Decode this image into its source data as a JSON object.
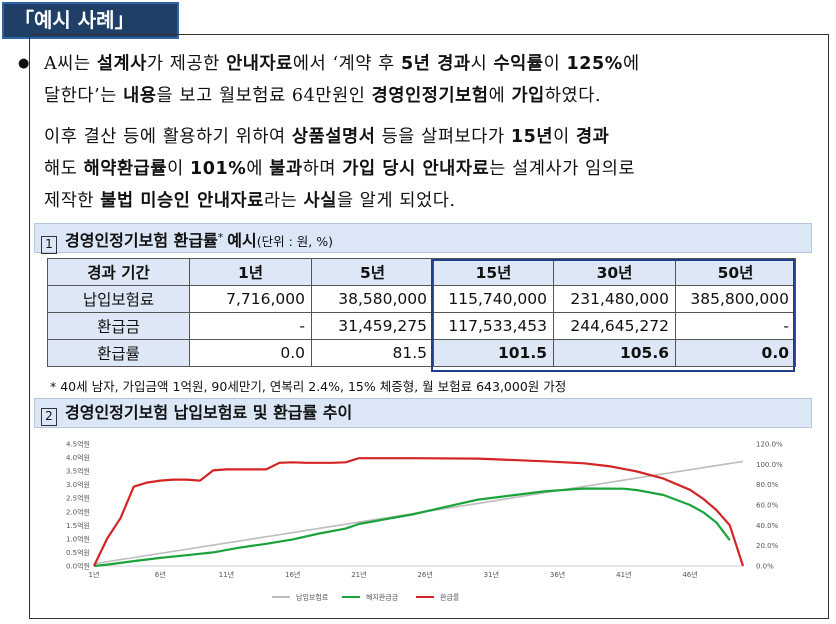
{
  "case_tag": "「예시 사례」",
  "paragraphs": [
    [
      {
        "t": "A씨는 ",
        "b": false
      },
      {
        "t": "설계사",
        "b": true
      },
      {
        "t": "가 제공한 ",
        "b": false
      },
      {
        "t": "안내자료",
        "b": true
      },
      {
        "t": "에서 ‘계약 후 ",
        "b": false
      },
      {
        "t": "5년 경과",
        "b": true
      },
      {
        "t": "시 ",
        "b": false
      },
      {
        "t": "수익률",
        "b": true
      },
      {
        "t": "이 ",
        "b": false
      },
      {
        "t": "125%",
        "b": true
      },
      {
        "t": "에",
        "b": false
      }
    ],
    [
      {
        "t": "달한다’는 ",
        "b": false
      },
      {
        "t": "내용",
        "b": true
      },
      {
        "t": "을 보고 월보험료 64만원인 ",
        "b": false
      },
      {
        "t": "경영인정기보험",
        "b": true
      },
      {
        "t": "에 ",
        "b": false
      },
      {
        "t": "가입",
        "b": true
      },
      {
        "t": "하였다.",
        "b": false
      }
    ],
    [
      {
        "t": "이후 결산 등에 활용하기 위하여 ",
        "b": false
      },
      {
        "t": "상품설명서",
        "b": true
      },
      {
        "t": " 등을 살펴보다가 ",
        "b": false
      },
      {
        "t": "15년",
        "b": true
      },
      {
        "t": "이 ",
        "b": false
      },
      {
        "t": "경과",
        "b": true
      }
    ],
    [
      {
        "t": "해도 ",
        "b": false
      },
      {
        "t": "해약환급률",
        "b": true
      },
      {
        "t": "이 ",
        "b": false
      },
      {
        "t": "101%",
        "b": true
      },
      {
        "t": "에 ",
        "b": false
      },
      {
        "t": "불과",
        "b": true
      },
      {
        "t": "하며 ",
        "b": false
      },
      {
        "t": "가입 당시 안내자료",
        "b": true
      },
      {
        "t": "는 설계사가 임의로",
        "b": false
      }
    ],
    [
      {
        "t": "제작한 ",
        "b": false
      },
      {
        "t": "불법 미승인 안내자료",
        "b": true
      },
      {
        "t": "라는 ",
        "b": false
      },
      {
        "t": "사실",
        "b": true
      },
      {
        "t": "을 알게 되었다.",
        "b": false
      }
    ]
  ],
  "section1": {
    "num": "1",
    "title": "경영인정기보험 환급률",
    "star": "*",
    "title2": "예시",
    "unit": "(단위 : 원, %)"
  },
  "table": {
    "headers": [
      "경과 기간",
      "1년",
      "5년",
      "15년",
      "30년",
      "50년"
    ],
    "rows": [
      {
        "label": "납입보험료",
        "values": [
          "7,716,000",
          "38,580,000",
          "115,740,000",
          "231,480,000",
          "385,800,000"
        ]
      },
      {
        "label": "환급금",
        "values": [
          "-",
          "31,459,275",
          "117,533,453",
          "244,645,272",
          "-"
        ]
      },
      {
        "label": "환급률",
        "values": [
          "0.0",
          "81.5",
          "101.5",
          "105.6",
          "0.0"
        ]
      }
    ]
  },
  "footnote": "* 40세 남자, 가입금액 1억원, 90세만기, 연복리 2.4%, 15% 체증형, 월 보험료 643,000원 가정",
  "section2": {
    "num": "2",
    "title": "경영인정기보험 납입보험료 및 환급률 추이"
  },
  "chart_data": {
    "type": "line",
    "x_ticks": [
      "1년",
      "6년",
      "11년",
      "16년",
      "21년",
      "26년",
      "31년",
      "36년",
      "41년",
      "46년"
    ],
    "y_left_ticks": [
      "0.0억원",
      "0.5억원",
      "1.0억원",
      "1.5억원",
      "2.0억원",
      "2.5억원",
      "3.0억원",
      "3.5억원",
      "4.0억원",
      "4.5억원"
    ],
    "y_left_range": [
      0,
      4.5
    ],
    "y_right_ticks": [
      "0.0%",
      "20.0%",
      "40.0%",
      "60.0%",
      "80.0%",
      "100.0%",
      "120.0%"
    ],
    "y_right_range": [
      0,
      120
    ],
    "x_range": [
      1,
      50
    ],
    "legend": [
      "납입보험료",
      "해지환급금",
      "환급률"
    ],
    "colors": {
      "premium": "#bdbdbd",
      "refund": "#1aa33a",
      "rate": "#d42424"
    },
    "series": [
      {
        "name": "납입보험료",
        "axis": "left",
        "x": [
          1,
          10,
          20,
          30,
          40,
          50
        ],
        "y": [
          0.08,
          0.77,
          1.54,
          2.31,
          3.09,
          3.86
        ]
      },
      {
        "name": "해지환급금",
        "axis": "left",
        "x": [
          1,
          2,
          4,
          6,
          8,
          10,
          12,
          14,
          16,
          18,
          20,
          21,
          25,
          30,
          35,
          38,
          41,
          42,
          44,
          46,
          47,
          48,
          49
        ],
        "y": [
          0.0,
          0.05,
          0.18,
          0.3,
          0.4,
          0.5,
          0.68,
          0.82,
          0.98,
          1.2,
          1.38,
          1.55,
          1.9,
          2.45,
          2.75,
          2.86,
          2.85,
          2.8,
          2.62,
          2.25,
          1.98,
          1.6,
          0.95
        ]
      },
      {
        "name": "환급률",
        "axis": "right",
        "x": [
          1,
          2,
          3,
          4,
          5,
          6,
          7,
          8,
          9,
          10,
          11,
          12,
          13,
          14,
          15,
          16,
          17,
          18,
          19,
          20,
          21,
          25,
          30,
          35,
          38,
          40,
          42,
          44,
          46,
          47,
          48,
          49,
          50
        ],
        "y": [
          0,
          27,
          47,
          78,
          82,
          84,
          85,
          85,
          84,
          94,
          95,
          95,
          95,
          95,
          101.5,
          102,
          101.5,
          101.5,
          101.5,
          102,
          106,
          106,
          105.6,
          103,
          101,
          98,
          93,
          86,
          75,
          66,
          55,
          40,
          0
        ]
      }
    ]
  }
}
